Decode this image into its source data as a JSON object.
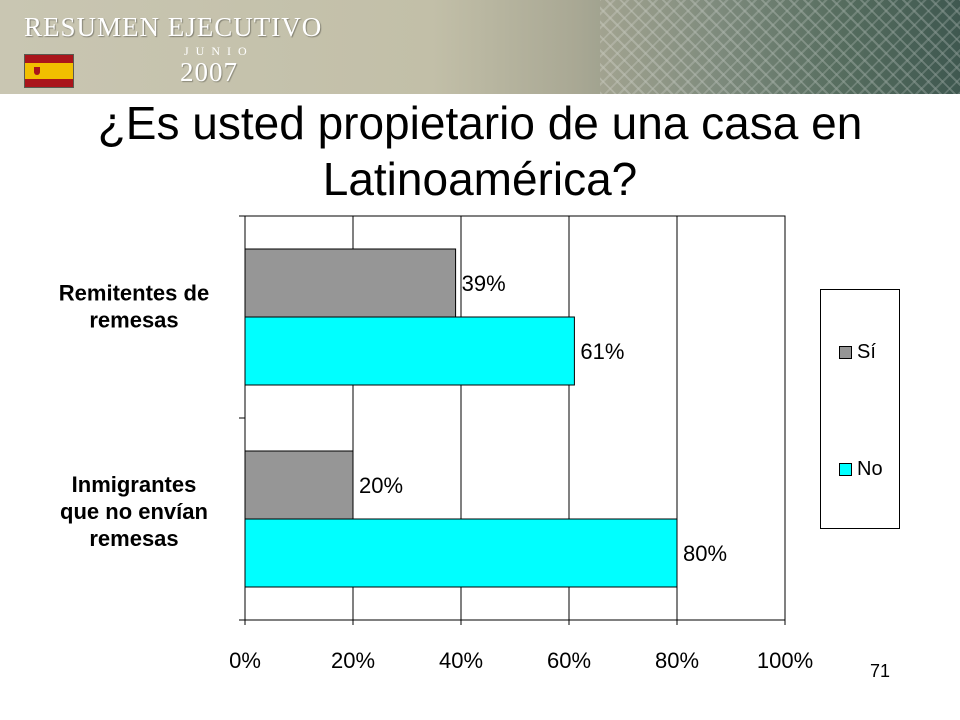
{
  "header": {
    "logo_title": "RESUMEN EJECUTIVO",
    "logo_month": "JUNIO",
    "logo_year": "2007",
    "flag_icon": "spain-flag-icon",
    "colors": {
      "flag_red": "#aa151b",
      "flag_yellow": "#f1bf00"
    }
  },
  "slide": {
    "title_lines": [
      "¿Es usted propietario de una casa en",
      "Latinoamérica?"
    ],
    "page_number": "71"
  },
  "chart_data": {
    "type": "bar",
    "orientation": "horizontal",
    "categories": [
      "Remitentes de remesas",
      "Inmigrantes que no envían remesas"
    ],
    "category_label_lines": [
      [
        "Remitentes de",
        "remesas"
      ],
      [
        "Inmigrantes",
        "que no envían",
        "remesas"
      ]
    ],
    "series": [
      {
        "name": "Sí",
        "values": [
          39,
          20
        ],
        "labels": [
          "39%",
          "20%"
        ],
        "color": "#969696"
      },
      {
        "name": "No",
        "values": [
          61,
          80
        ],
        "labels": [
          "61%",
          "80%"
        ],
        "color": "#00ffff"
      }
    ],
    "x_ticks": [
      "0%",
      "20%",
      "40%",
      "60%",
      "80%",
      "100%"
    ],
    "xlim": [
      0,
      100
    ],
    "grid": true,
    "legend_position": "right"
  }
}
